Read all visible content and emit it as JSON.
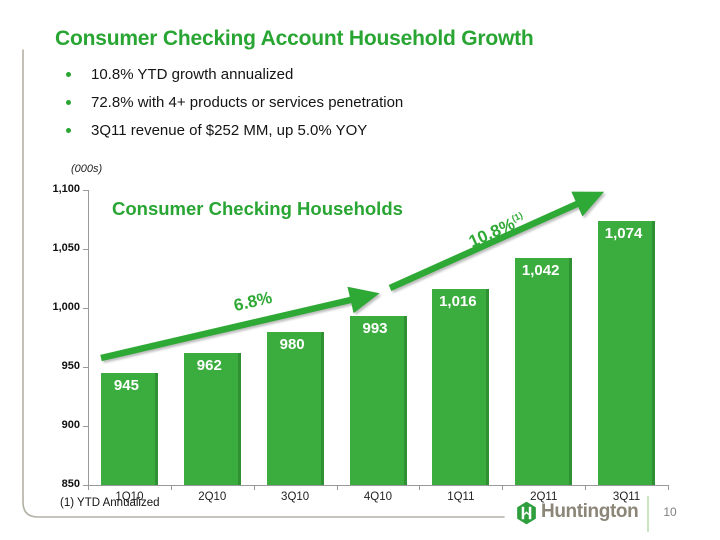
{
  "slide": {
    "title": "Consumer Checking Account Household Growth",
    "bullets": [
      "10.8% YTD growth annualized",
      "72.8% with 4+ products or services penetration",
      "3Q11 revenue of $252 MM, up  5.0% YOY"
    ],
    "footnote": "(1) YTD Annualized",
    "page_number": "10",
    "logo_text": "Huntington"
  },
  "chart_data": {
    "type": "bar",
    "title": "Consumer Checking Households",
    "axis_unit_label": "(000s)",
    "categories": [
      "1Q10",
      "2Q10",
      "3Q10",
      "4Q10",
      "1Q11",
      "2Q11",
      "3Q11"
    ],
    "values": [
      945,
      962,
      980,
      993,
      1016,
      1042,
      1074
    ],
    "value_labels": [
      "945",
      "962",
      "980",
      "993",
      "1,016",
      "1,042",
      "1,074"
    ],
    "xlabel": "",
    "ylabel": "(000s)",
    "ylim": [
      850,
      1100
    ],
    "ytick_interval": 50,
    "yticks": [
      "1,100",
      "1,050",
      "1,000",
      "950",
      "900",
      "850"
    ],
    "grid": false,
    "legend": "none",
    "annotations": [
      {
        "label": "6.8%",
        "superscript": "",
        "type": "growth-arrow",
        "span": "1Q10 to 4Q10"
      },
      {
        "label": "10.8%",
        "superscript": "(1)",
        "type": "growth-arrow",
        "span": "4Q10 to 3Q11"
      }
    ]
  },
  "colors": {
    "brand_green": "#28A532",
    "bar_green": "#3BAD3E",
    "bar_edge_green": "#2F9133",
    "arrow_green": "#2FA935",
    "text_black": "#151515",
    "axis_gray": "#999999",
    "border_gray": "#b3b0a5",
    "logo_taupe": "#8B8678",
    "separator_light_green": "#cde4c0",
    "page_gray": "#808080"
  }
}
